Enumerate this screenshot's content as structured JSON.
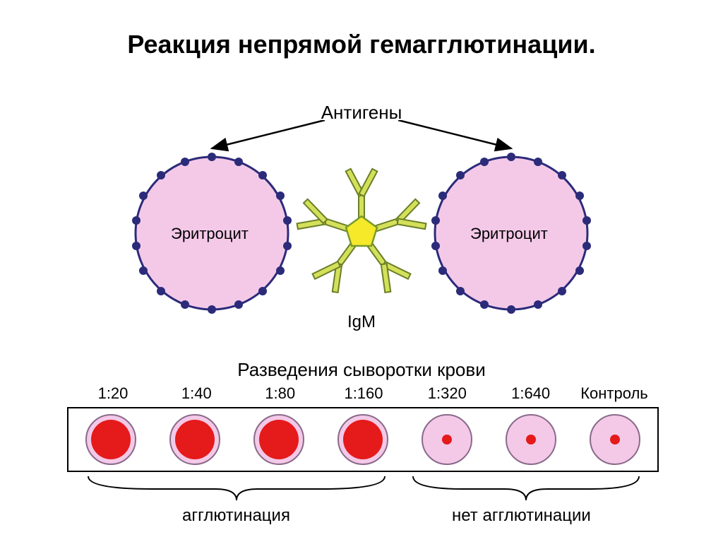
{
  "title": {
    "text": "Реакция непрямой гемагглютинации.",
    "fontsize": 36
  },
  "antigens_label": {
    "text": "Антигены",
    "fontsize": 26
  },
  "igm_label": {
    "text": "IgM",
    "fontsize": 24
  },
  "serum_dilution_label": {
    "text": "Разведения сыворотки крови",
    "fontsize": 26
  },
  "erythrocyte_label": {
    "text": "Эритроцит",
    "fontsize": 22
  },
  "erythrocyte": {
    "fill": "#f4c9e8",
    "stroke": "#2b2b7a",
    "radius": 108,
    "dot_color": "#2b2b7a",
    "dot_radius": 6,
    "dot_count": 18
  },
  "igm": {
    "pentagon_fill": "#f5e92a",
    "pentagon_stroke": "#7a9a2a",
    "arm_color": "#9bb53c",
    "arm_stroke": "#6a7f28"
  },
  "arrow_color": "#000000",
  "dilutions": {
    "fontsize": 22,
    "items": [
      "1:20",
      "1:40",
      "1:80",
      "1:160",
      "1:320",
      "1:640",
      "Контроль"
    ]
  },
  "wells": {
    "outer_fill": "#f4c9e8",
    "outer_stroke": "#8a6a8a",
    "positive_inner_fill": "#e51a1a",
    "positive_inner_radius": 28,
    "negative_inner_fill": "#e51a1a",
    "negative_inner_radius": 7,
    "pattern": [
      true,
      true,
      true,
      true,
      false,
      false,
      false
    ]
  },
  "agglutination_label": {
    "text": "агглютинация",
    "fontsize": 24
  },
  "no_agglutination_label": {
    "text": "нет агглютинации",
    "fontsize": 24
  },
  "bracket_color": "#000000",
  "box_border_color": "#000000"
}
